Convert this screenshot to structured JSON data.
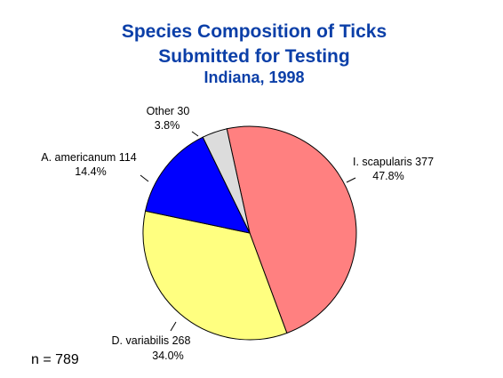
{
  "chart_data": {
    "type": "pie",
    "title": "Species Composition of Ticks",
    "title_line2": "Submitted for Testing",
    "subtitle": "Indiana, 1998",
    "slices": [
      {
        "label": "I. scapularis",
        "value": 377,
        "percent": "47.8%",
        "color": "#ff8080"
      },
      {
        "label": "D. variabilis",
        "value": 268,
        "percent": "34.0%",
        "color": "#ffff80"
      },
      {
        "label": "A. americanum",
        "value": 114,
        "percent": "14.4%",
        "color": "#0000ff"
      },
      {
        "label": "Other",
        "value": 30,
        "percent": "3.8%",
        "color": "#dcdcdc"
      }
    ],
    "start_angle_deg": -102.4,
    "direction": "clockwise"
  },
  "footnote": "n = 789",
  "colors": {
    "title": "#0b3fa8",
    "outline": "#000000",
    "background": "#ffffff"
  }
}
